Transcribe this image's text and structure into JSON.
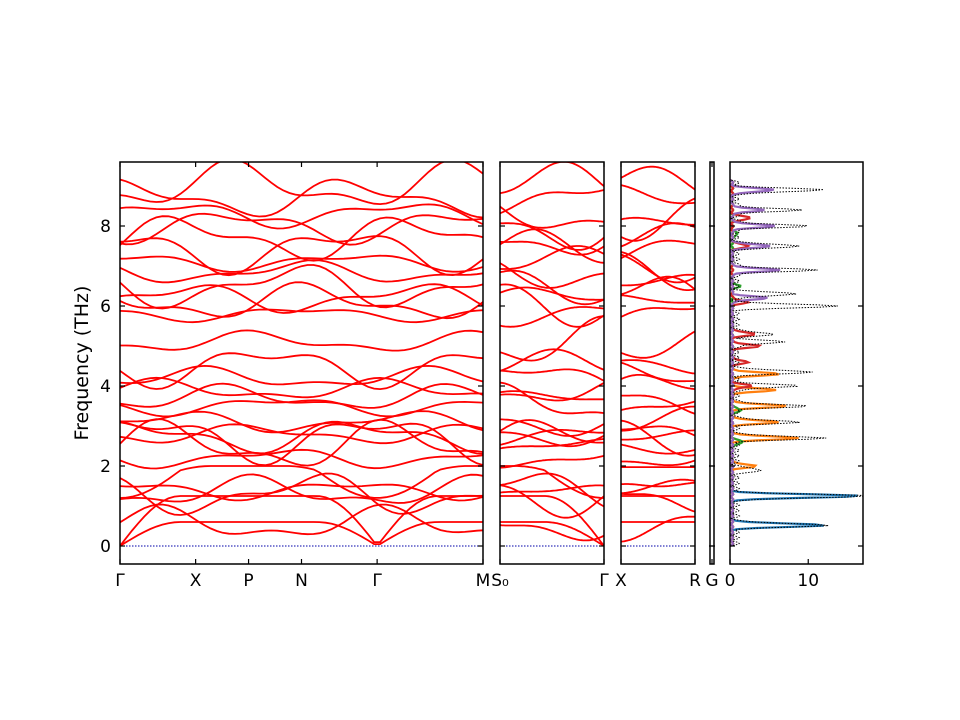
{
  "chart_data": {
    "type": "line",
    "ylabel": "Frequency (THz)",
    "ylim": [
      -0.45,
      9.6
    ],
    "yticks": [
      0,
      2,
      4,
      6,
      8
    ],
    "band_color": "#ff0000",
    "zero_line_color": "#0000aa",
    "panels": [
      {
        "segments": [
          "Γ-X",
          "X-P",
          "P-N",
          "N-Γ",
          "Γ-M"
        ],
        "tick_labels": [
          "Γ",
          "X",
          "P",
          "N",
          "Γ",
          "M"
        ],
        "xlim": [
          0,
          4.8
        ],
        "tick_positions": [
          0,
          1.0,
          1.7,
          2.4,
          3.4,
          4.8
        ]
      },
      {
        "segments": [
          "S0-Γ"
        ],
        "tick_labels": [
          "S0",
          "Γ"
        ],
        "label_display": [
          "S₀",
          "Γ"
        ],
        "xlim": [
          0,
          1.4
        ],
        "tick_positions": [
          0,
          1.4
        ]
      },
      {
        "segments": [
          "X-R"
        ],
        "tick_labels": [
          "X",
          "R"
        ],
        "xlim": [
          0,
          1.0
        ],
        "tick_positions": [
          0,
          1.0
        ]
      },
      {
        "segments": [
          "G"
        ],
        "tick_labels": [
          "G"
        ],
        "xlim": [
          0,
          0.1
        ],
        "tick_positions": [
          0.05
        ]
      }
    ],
    "bands_at_gamma": [
      0,
      0,
      0,
      0.55,
      1.3,
      1.35,
      1.4,
      2.2,
      2.5,
      2.7,
      2.75,
      2.8,
      3.1,
      3.5,
      3.7,
      3.9,
      4.2,
      4.5,
      5.1,
      5.8,
      6.1,
      6.2,
      6.5,
      6.85,
      7.1,
      7.4,
      7.7,
      8.0,
      8.3,
      8.7,
      9.0
    ],
    "dos_panel": {
      "xlim": [
        0,
        17
      ],
      "xticks": [
        0,
        10
      ],
      "series": [
        {
          "color": "#1f77b4",
          "peaks": [
            [
              0.52,
              12.0
            ],
            [
              1.25,
              16.5
            ]
          ]
        },
        {
          "color": "#ff7f0e",
          "peaks": [
            [
              2.0,
              3.0
            ],
            [
              2.7,
              8.5
            ],
            [
              3.1,
              6.0
            ],
            [
              3.5,
              7.0
            ],
            [
              3.9,
              5.5
            ],
            [
              4.3,
              6.0
            ]
          ]
        },
        {
          "color": "#2ca02c",
          "peaks": [
            [
              2.6,
              1.5
            ],
            [
              3.4,
              1.2
            ],
            [
              6.5,
              1.0
            ],
            [
              7.8,
              0.8
            ]
          ]
        },
        {
          "color": "#d62728",
          "peaks": [
            [
              4.0,
              2.5
            ],
            [
              4.6,
              2.0
            ],
            [
              5.0,
              3.5
            ],
            [
              5.3,
              3.0
            ],
            [
              6.1,
              2.0
            ],
            [
              7.5,
              2.2
            ],
            [
              8.2,
              2.5
            ]
          ]
        },
        {
          "color": "#9467bd",
          "peaks": [
            [
              6.2,
              4.5
            ],
            [
              6.9,
              6.0
            ],
            [
              7.5,
              5.0
            ],
            [
              8.0,
              5.5
            ],
            [
              8.4,
              4.0
            ],
            [
              8.9,
              5.5
            ]
          ]
        }
      ],
      "total": {
        "color": "#000000",
        "peaks": [
          [
            0.52,
            12.0
          ],
          [
            1.25,
            17.5
          ],
          [
            1.9,
            3.5
          ],
          [
            2.7,
            11.5
          ],
          [
            3.1,
            8.0
          ],
          [
            3.5,
            9.0
          ],
          [
            4.0,
            8.0
          ],
          [
            4.35,
            10.0
          ],
          [
            5.1,
            6.0
          ],
          [
            5.3,
            5.0
          ],
          [
            6.0,
            13.5
          ],
          [
            6.3,
            8.0
          ],
          [
            6.9,
            10.0
          ],
          [
            7.5,
            8.5
          ],
          [
            8.0,
            9.0
          ],
          [
            8.4,
            8.0
          ],
          [
            8.9,
            11.5
          ]
        ]
      }
    }
  }
}
